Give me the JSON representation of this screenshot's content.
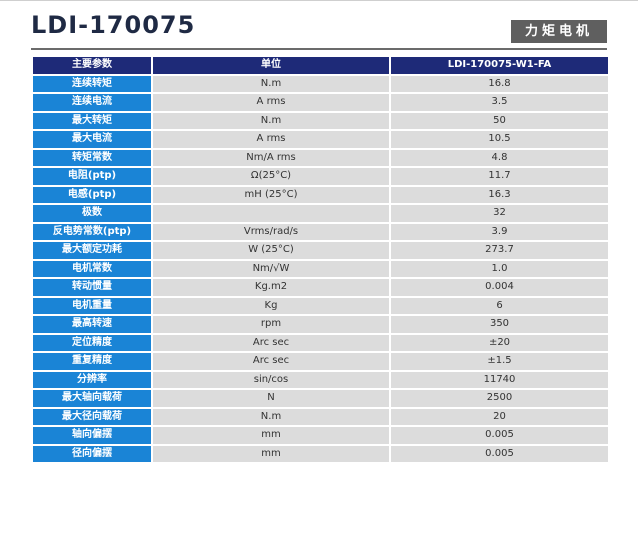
{
  "header": {
    "title": "LDI-170075",
    "badge": "力矩电机"
  },
  "table": {
    "columns": [
      "主要参数",
      "单位",
      "LDI-170075-W1-FA"
    ],
    "rows": [
      {
        "param": "连续转矩",
        "unit": "N.m",
        "value": "16.8"
      },
      {
        "param": "连续电流",
        "unit": "A rms",
        "value": "3.5"
      },
      {
        "param": "最大转矩",
        "unit": "N.m",
        "value": "50"
      },
      {
        "param": "最大电流",
        "unit": "A rms",
        "value": "10.5"
      },
      {
        "param": "转矩常数",
        "unit": "Nm/A rms",
        "value": "4.8"
      },
      {
        "param": "电阻(ptp)",
        "unit": "Ω(25°C)",
        "value": "11.7"
      },
      {
        "param": "电感(ptp)",
        "unit": "mH (25°C)",
        "value": "16.3"
      },
      {
        "param": "极数",
        "unit": "",
        "value": "32"
      },
      {
        "param": "反电势常数(ptp)",
        "unit": "Vrms/rad/s",
        "value": "3.9"
      },
      {
        "param": "最大额定功耗",
        "unit": "W (25°C)",
        "value": "273.7"
      },
      {
        "param": "电机常数",
        "unit": "Nm/√W",
        "value": "1.0"
      },
      {
        "param": "转动惯量",
        "unit": "Kg.m2",
        "value": "0.004"
      },
      {
        "param": "电机重量",
        "unit": "Kg",
        "value": "6"
      },
      {
        "param": "最高转速",
        "unit": "rpm",
        "value": "350"
      },
      {
        "param": "定位精度",
        "unit": "Arc sec",
        "value": "±20"
      },
      {
        "param": "重复精度",
        "unit": "Arc sec",
        "value": "±1.5"
      },
      {
        "param": "分辨率",
        "unit": "sin/cos",
        "value": "11740"
      },
      {
        "param": "最大轴向载荷",
        "unit": "N",
        "value": "2500"
      },
      {
        "param": "最大径向载荷",
        "unit": "N.m",
        "value": "20"
      },
      {
        "param": "轴向偏摆",
        "unit": "mm",
        "value": "0.005"
      },
      {
        "param": "径向偏摆",
        "unit": "mm",
        "value": "0.005"
      }
    ]
  }
}
